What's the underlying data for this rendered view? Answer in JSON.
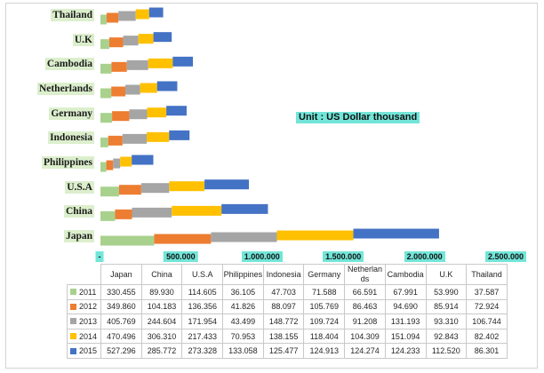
{
  "chart_data": {
    "type": "bar",
    "orientation": "horizontal",
    "stacked": true,
    "annotation": "Unit : US Dollar thousand",
    "categories": [
      "Japan",
      "China",
      "U.S.A",
      "Philippines",
      "Indonesia",
      "Germany",
      "Netherlands",
      "Cambodia",
      "U.K",
      "Thailand"
    ],
    "series": [
      {
        "name": "2011",
        "color": "#a9d18e",
        "values": [
          330455,
          89930,
          114605,
          36105,
          47703,
          71588,
          66591,
          67991,
          53990,
          37587
        ]
      },
      {
        "name": "2012",
        "color": "#ed7d31",
        "values": [
          349860,
          104183,
          136356,
          41826,
          88097,
          105769,
          86463,
          94690,
          85914,
          72924
        ]
      },
      {
        "name": "2013",
        "color": "#a5a5a5",
        "values": [
          405769,
          244604,
          171954,
          43499,
          148772,
          109724,
          91208,
          131193,
          93310,
          106744
        ]
      },
      {
        "name": "2014",
        "color": "#ffc000",
        "values": [
          470496,
          306310,
          217433,
          70953,
          138155,
          118404,
          104309,
          151094,
          92843,
          82402
        ]
      },
      {
        "name": "2015",
        "color": "#4472c4",
        "values": [
          527296,
          285772,
          273328,
          133058,
          125477,
          124913,
          124274,
          124233,
          112520,
          86301
        ]
      }
    ],
    "xlim": [
      0,
      2500000
    ],
    "x_ticks": [
      0,
      500000,
      1000000,
      1500000,
      2000000,
      2500000
    ],
    "x_tick_labels": [
      "-",
      "500.000",
      "1.000.000",
      "1.500.000",
      "2.000.000",
      "2.500.000"
    ],
    "grid": false,
    "legend": "bottom"
  },
  "data_table": {
    "rows": [
      [
        "330.455",
        "89.930",
        "114.605",
        "36.105",
        "47.703",
        "71.588",
        "66.591",
        "67.991",
        "53.990",
        "37.587"
      ],
      [
        "349.860",
        "104.183",
        "136.356",
        "41.826",
        "88.097",
        "105.769",
        "86.463",
        "94.690",
        "85.914",
        "72.924"
      ],
      [
        "405.769",
        "244.604",
        "171.954",
        "43.499",
        "148.772",
        "109.724",
        "91.208",
        "131.193",
        "93.310",
        "106.744"
      ],
      [
        "470.496",
        "306.310",
        "217.433",
        "70.953",
        "138.155",
        "118.404",
        "104.309",
        "151.094",
        "92.843",
        "82.402"
      ],
      [
        "527.296",
        "285.772",
        "273.328",
        "133.058",
        "125.477",
        "124.913",
        "124.274",
        "124.233",
        "112.520",
        "86.301"
      ]
    ]
  }
}
